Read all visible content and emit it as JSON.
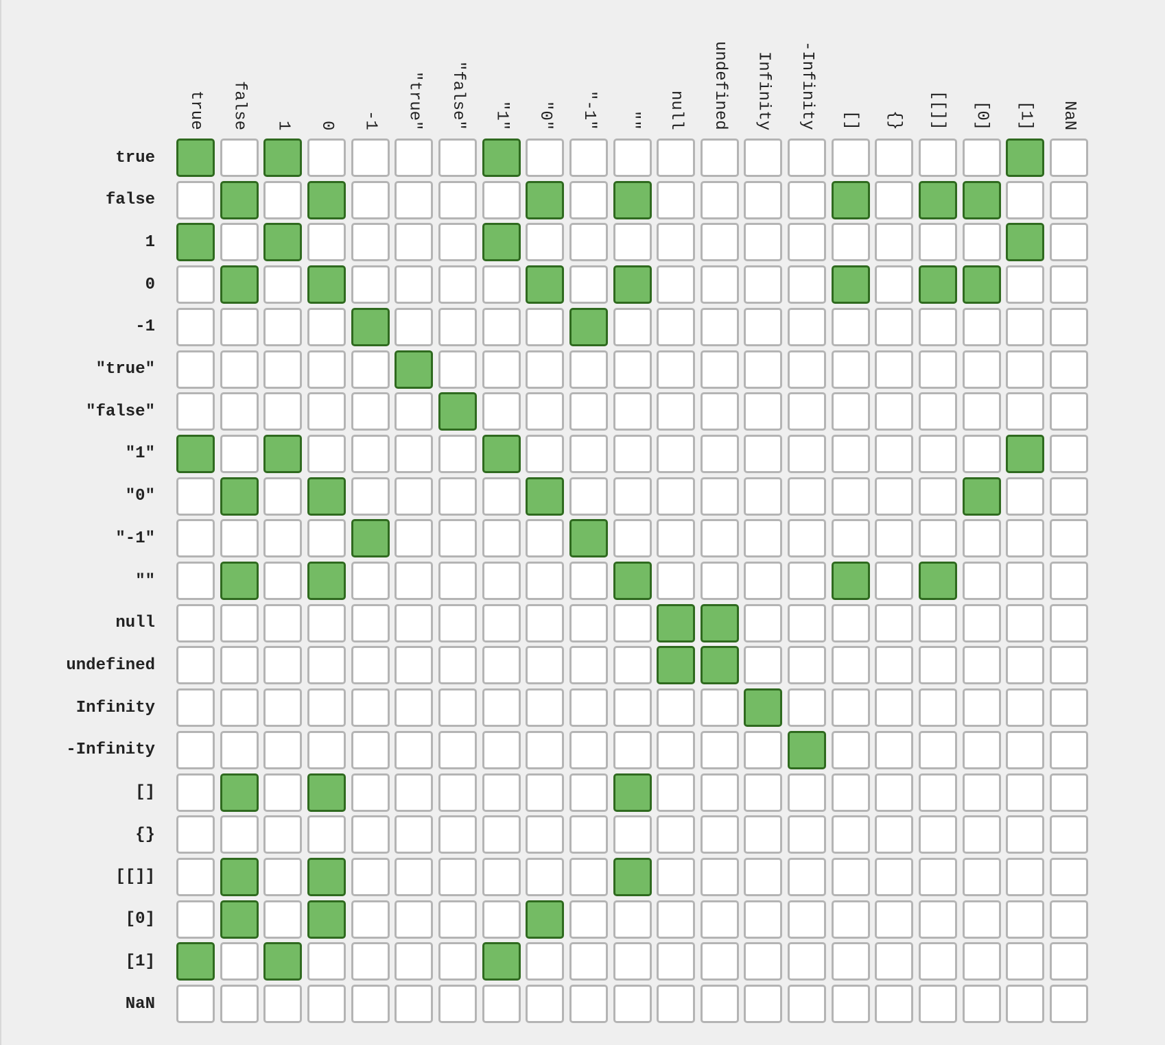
{
  "labels": [
    "true",
    "false",
    "1",
    "0",
    "-1",
    "\"true\"",
    "\"false\"",
    "\"1\"",
    "\"0\"",
    "\"-1\"",
    "\"\"",
    "null",
    "undefined",
    "Infinity",
    "-Infinity",
    "[]",
    "{}",
    "[[]]",
    "[0]",
    "[1]",
    "NaN"
  ],
  "colors": {
    "equal_fill": "#74bb64",
    "equal_border": "#2f6a1f",
    "unequal_fill": "#ffffff",
    "unequal_border": "#b4b4b4",
    "background": "#efefef"
  },
  "equal_pairs": [
    [
      0,
      2,
      7,
      19
    ],
    [
      1,
      3,
      8,
      10,
      15,
      17,
      18
    ],
    [
      0,
      2,
      7,
      19
    ],
    [
      1,
      3,
      8,
      10,
      15,
      17,
      18
    ],
    [
      4,
      9
    ],
    [
      5
    ],
    [
      6
    ],
    [
      0,
      2,
      7,
      19
    ],
    [
      1,
      3,
      8,
      18
    ],
    [
      4,
      9
    ],
    [
      1,
      3,
      10,
      15,
      17
    ],
    [
      11,
      12
    ],
    [
      11,
      12
    ],
    [
      13
    ],
    [
      14
    ],
    [
      1,
      3,
      10
    ],
    [],
    [
      1,
      3,
      10
    ],
    [
      1,
      3,
      8
    ],
    [
      0,
      2,
      7
    ],
    []
  ]
}
